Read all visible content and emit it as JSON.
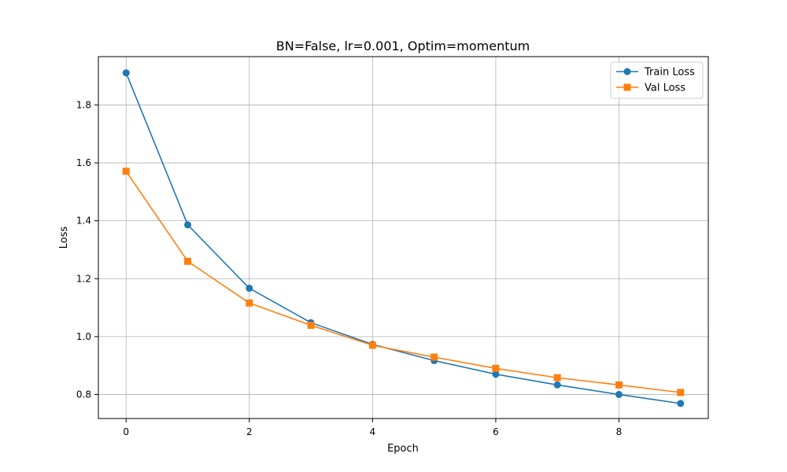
{
  "chart_data": {
    "type": "line",
    "title": "BN=False, lr=0.001, Optim=momentum",
    "xlabel": "Epoch",
    "ylabel": "Loss",
    "xlim": [
      -0.45,
      9.45
    ],
    "ylim": [
      0.717,
      1.967
    ],
    "xticks": [
      0,
      2,
      4,
      6,
      8
    ],
    "yticks": [
      0.8,
      1.0,
      1.2,
      1.4,
      1.6,
      1.8
    ],
    "xtick_labels": [
      "0",
      "2",
      "4",
      "6",
      "8"
    ],
    "ytick_labels": [
      "0.8",
      "1.0",
      "1.2",
      "1.4",
      "1.6",
      "1.8"
    ],
    "grid": true,
    "legend_position": "top-right",
    "x": [
      0,
      1,
      2,
      3,
      4,
      5,
      6,
      7,
      8,
      9
    ],
    "series": [
      {
        "name": "Train Loss",
        "marker": "circle",
        "color": "#1f77b4",
        "values": [
          1.911,
          1.386,
          1.167,
          1.048,
          0.973,
          0.917,
          0.87,
          0.833,
          0.8,
          0.769
        ]
      },
      {
        "name": "Val Loss",
        "marker": "square",
        "color": "#ff7f0e",
        "values": [
          1.571,
          1.26,
          1.116,
          1.039,
          0.97,
          0.929,
          0.89,
          0.858,
          0.833,
          0.807
        ]
      }
    ]
  }
}
